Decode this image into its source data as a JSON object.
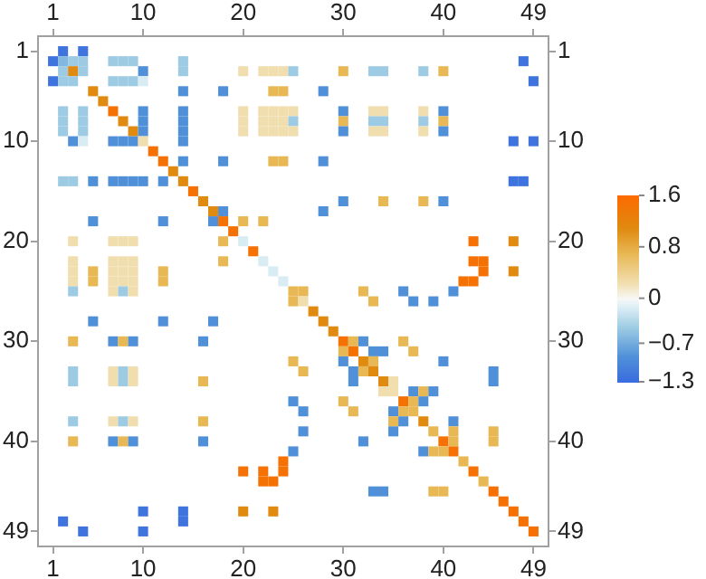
{
  "chart_data": {
    "type": "heatmap",
    "categories": [
      "1",
      null,
      null,
      null,
      null,
      null,
      null,
      null,
      null,
      "10",
      null,
      null,
      null,
      null,
      null,
      null,
      null,
      null,
      null,
      "20",
      null,
      null,
      null,
      null,
      null,
      null,
      null,
      null,
      null,
      "30",
      null,
      null,
      null,
      null,
      null,
      null,
      null,
      null,
      null,
      "40",
      null,
      null,
      null,
      null,
      null,
      null,
      null,
      null,
      "49"
    ],
    "y_categories": [
      "1",
      null,
      null,
      null,
      null,
      null,
      null,
      null,
      null,
      "10",
      null,
      null,
      null,
      null,
      null,
      null,
      null,
      null,
      null,
      "20",
      null,
      null,
      null,
      null,
      null,
      null,
      null,
      null,
      null,
      "30",
      null,
      null,
      null,
      null,
      null,
      null,
      null,
      null,
      null,
      "40",
      null,
      null,
      null,
      null,
      null,
      null,
      null,
      null,
      "49"
    ],
    "y2_categories": [
      "1",
      null,
      null,
      null,
      null,
      null,
      null,
      null,
      null,
      "10",
      null,
      null,
      null,
      null,
      null,
      null,
      null,
      null,
      null,
      "20",
      null,
      null,
      null,
      null,
      null,
      null,
      null,
      null,
      null,
      "30",
      null,
      null,
      null,
      null,
      null,
      null,
      null,
      null,
      null,
      "40",
      null,
      null,
      null,
      null,
      null,
      null,
      null,
      null,
      "49"
    ],
    "x2lim": [
      -0.5,
      50.5
    ],
    "x2ticks": [
      1,
      10,
      20,
      30,
      40,
      49
    ],
    "clim": [
      -1.3,
      1.6
    ],
    "cticks": [
      1.6,
      0.8,
      0,
      {
        "value": -0.7,
        "label": "−0.7"
      },
      {
        "value": -1.3,
        "label": "−1.3"
      }
    ],
    "cells": [
      [
        null,
        -1.2,
        null,
        -1.2,
        null,
        null,
        null,
        null,
        null,
        null,
        null,
        null,
        null,
        null,
        null,
        null,
        null,
        null,
        null,
        null,
        null,
        null,
        null,
        null,
        null,
        null,
        null,
        null,
        null,
        null,
        null,
        null,
        null,
        null,
        null,
        null,
        null,
        null,
        null,
        null,
        null,
        null,
        null,
        null,
        null,
        null,
        null,
        null,
        null
      ],
      [
        -1.2,
        -0.6,
        -0.45,
        -0.45,
        null,
        null,
        -0.45,
        -0.45,
        -0.45,
        null,
        null,
        null,
        null,
        -0.45,
        null,
        null,
        null,
        null,
        null,
        null,
        null,
        null,
        null,
        null,
        null,
        null,
        null,
        null,
        null,
        null,
        null,
        null,
        null,
        null,
        null,
        null,
        null,
        null,
        null,
        null,
        null,
        null,
        null,
        null,
        null,
        null,
        null,
        -1.2,
        null
      ],
      [
        null,
        -0.45,
        1.1,
        -0.45,
        null,
        null,
        null,
        null,
        null,
        -0.9,
        null,
        null,
        null,
        -0.45,
        null,
        null,
        null,
        null,
        null,
        0.25,
        null,
        0.25,
        0.25,
        0.25,
        -0.45,
        null,
        null,
        null,
        null,
        0.7,
        null,
        null,
        -0.45,
        -0.45,
        null,
        null,
        null,
        -0.45,
        null,
        0.7,
        null,
        null,
        null,
        null,
        null,
        null,
        null,
        null,
        null
      ],
      [
        -1.2,
        -0.45,
        -0.45,
        null,
        null,
        null,
        -0.45,
        -0.45,
        -0.45,
        -0.15,
        null,
        null,
        null,
        null,
        null,
        null,
        null,
        null,
        null,
        null,
        null,
        null,
        null,
        null,
        null,
        null,
        null,
        null,
        null,
        null,
        null,
        null,
        null,
        null,
        null,
        null,
        null,
        null,
        null,
        null,
        null,
        null,
        null,
        null,
        null,
        null,
        null,
        null,
        -1.2
      ],
      [
        null,
        null,
        null,
        null,
        1.1,
        null,
        null,
        null,
        null,
        null,
        null,
        null,
        null,
        -0.9,
        null,
        null,
        null,
        -0.9,
        null,
        null,
        null,
        null,
        0.7,
        0.7,
        null,
        null,
        null,
        -0.9,
        null,
        null,
        null,
        null,
        null,
        null,
        null,
        null,
        null,
        null,
        null,
        null,
        null,
        null,
        null,
        null,
        null,
        null,
        null,
        null,
        null
      ],
      [
        null,
        null,
        null,
        null,
        null,
        1.1,
        null,
        null,
        null,
        null,
        null,
        null,
        null,
        null,
        null,
        null,
        null,
        null,
        null,
        null,
        null,
        null,
        null,
        null,
        null,
        null,
        null,
        null,
        null,
        null,
        null,
        null,
        null,
        null,
        null,
        null,
        null,
        null,
        null,
        null,
        null,
        null,
        null,
        null,
        null,
        null,
        null,
        null,
        null
      ],
      [
        null,
        -0.45,
        null,
        -0.45,
        null,
        null,
        1.5,
        null,
        null,
        -0.9,
        null,
        null,
        null,
        -0.9,
        null,
        null,
        null,
        null,
        null,
        0.25,
        null,
        0.25,
        0.25,
        0.25,
        0.25,
        null,
        null,
        null,
        null,
        -0.9,
        null,
        null,
        0.25,
        0.25,
        null,
        null,
        null,
        0.25,
        null,
        -0.9,
        null,
        null,
        null,
        null,
        null,
        null,
        null,
        null,
        null
      ],
      [
        null,
        -0.45,
        null,
        -0.45,
        null,
        null,
        null,
        1.1,
        null,
        -0.9,
        null,
        null,
        null,
        -0.9,
        null,
        null,
        null,
        null,
        null,
        0.25,
        null,
        0.25,
        0.25,
        0.25,
        -0.45,
        null,
        null,
        null,
        null,
        0.7,
        null,
        null,
        -0.45,
        -0.45,
        null,
        null,
        null,
        -0.45,
        null,
        0.7,
        null,
        null,
        null,
        null,
        null,
        null,
        null,
        null,
        null
      ],
      [
        null,
        -0.45,
        null,
        -0.45,
        null,
        null,
        null,
        null,
        1.1,
        -0.9,
        null,
        null,
        null,
        -0.9,
        null,
        null,
        null,
        null,
        null,
        0.25,
        null,
        0.25,
        0.25,
        0.25,
        0.25,
        null,
        null,
        null,
        null,
        -0.9,
        null,
        null,
        0.25,
        0.25,
        null,
        null,
        null,
        0.25,
        null,
        -0.9,
        null,
        null,
        null,
        null,
        null,
        null,
        null,
        null,
        null
      ],
      [
        null,
        null,
        -0.9,
        -0.15,
        null,
        null,
        -0.9,
        -0.9,
        -0.9,
        0.25,
        null,
        null,
        null,
        -0.9,
        null,
        null,
        null,
        null,
        null,
        null,
        null,
        null,
        null,
        null,
        null,
        null,
        null,
        null,
        null,
        null,
        null,
        null,
        null,
        null,
        null,
        null,
        null,
        null,
        null,
        null,
        null,
        null,
        null,
        null,
        null,
        null,
        -1.2,
        null,
        -1.2
      ],
      [
        null,
        null,
        null,
        null,
        null,
        null,
        null,
        null,
        null,
        null,
        1.5,
        null,
        null,
        null,
        null,
        null,
        null,
        null,
        null,
        null,
        null,
        null,
        null,
        null,
        null,
        null,
        null,
        null,
        null,
        null,
        null,
        null,
        null,
        null,
        null,
        null,
        null,
        null,
        null,
        null,
        null,
        null,
        null,
        null,
        null,
        null,
        null,
        null,
        null
      ],
      [
        null,
        null,
        null,
        null,
        null,
        null,
        null,
        null,
        null,
        null,
        null,
        1.5,
        null,
        -0.9,
        null,
        null,
        null,
        -0.9,
        null,
        null,
        null,
        null,
        0.7,
        0.7,
        null,
        null,
        null,
        -0.9,
        null,
        null,
        null,
        null,
        null,
        null,
        null,
        null,
        null,
        null,
        null,
        null,
        null,
        null,
        null,
        null,
        null,
        null,
        null,
        null,
        null
      ],
      [
        null,
        null,
        null,
        null,
        null,
        null,
        null,
        null,
        null,
        null,
        null,
        null,
        1.1,
        null,
        null,
        null,
        null,
        null,
        null,
        null,
        null,
        null,
        null,
        null,
        null,
        null,
        null,
        null,
        null,
        null,
        null,
        null,
        null,
        null,
        null,
        null,
        null,
        null,
        null,
        null,
        null,
        null,
        null,
        null,
        null,
        null,
        null,
        null,
        null
      ],
      [
        null,
        -0.45,
        -0.45,
        null,
        -0.9,
        null,
        -0.9,
        -0.9,
        -0.9,
        -0.9,
        null,
        -0.9,
        null,
        1.1,
        null,
        null,
        null,
        null,
        null,
        null,
        null,
        null,
        null,
        null,
        null,
        null,
        null,
        null,
        null,
        null,
        null,
        null,
        null,
        null,
        null,
        null,
        null,
        null,
        null,
        null,
        null,
        null,
        null,
        null,
        null,
        null,
        -1.2,
        -1.2,
        null
      ],
      [
        null,
        null,
        null,
        null,
        null,
        null,
        null,
        null,
        null,
        null,
        null,
        null,
        null,
        null,
        1.5,
        null,
        null,
        null,
        null,
        null,
        null,
        null,
        null,
        null,
        null,
        null,
        null,
        null,
        null,
        null,
        null,
        null,
        null,
        null,
        null,
        null,
        null,
        null,
        null,
        null,
        null,
        null,
        null,
        null,
        null,
        null,
        null,
        null,
        null
      ],
      [
        null,
        null,
        null,
        null,
        null,
        null,
        null,
        null,
        null,
        null,
        null,
        null,
        null,
        null,
        null,
        1.1,
        null,
        null,
        null,
        null,
        null,
        null,
        null,
        null,
        null,
        null,
        null,
        null,
        null,
        -0.9,
        null,
        null,
        null,
        0.7,
        null,
        null,
        null,
        0.7,
        null,
        -0.9,
        null,
        null,
        null,
        null,
        null,
        null,
        null,
        null,
        null
      ],
      [
        null,
        null,
        null,
        null,
        null,
        null,
        null,
        null,
        null,
        null,
        null,
        null,
        null,
        null,
        null,
        null,
        1.1,
        -0.9,
        null,
        null,
        null,
        null,
        null,
        null,
        null,
        null,
        null,
        -0.9,
        null,
        null,
        null,
        null,
        null,
        null,
        null,
        null,
        null,
        null,
        null,
        null,
        null,
        null,
        null,
        null,
        null,
        null,
        null,
        null,
        null
      ],
      [
        null,
        null,
        null,
        null,
        -0.9,
        null,
        null,
        null,
        null,
        null,
        null,
        -0.9,
        null,
        null,
        null,
        null,
        -0.9,
        1.5,
        null,
        0.7,
        null,
        0.7,
        null,
        null,
        null,
        null,
        null,
        null,
        null,
        null,
        null,
        null,
        null,
        null,
        null,
        null,
        null,
        null,
        null,
        null,
        null,
        null,
        null,
        null,
        null,
        null,
        null,
        null,
        null
      ],
      [
        null,
        null,
        null,
        null,
        null,
        null,
        null,
        null,
        null,
        null,
        null,
        null,
        null,
        null,
        null,
        null,
        null,
        null,
        1.5,
        null,
        null,
        null,
        null,
        null,
        null,
        null,
        null,
        null,
        null,
        null,
        null,
        null,
        null,
        null,
        null,
        null,
        null,
        null,
        null,
        null,
        null,
        null,
        null,
        null,
        null,
        null,
        null,
        null,
        null
      ],
      [
        null,
        null,
        0.25,
        null,
        null,
        null,
        0.25,
        0.25,
        0.25,
        null,
        null,
        null,
        null,
        null,
        null,
        null,
        null,
        0.7,
        null,
        -0.15,
        null,
        null,
        null,
        null,
        null,
        null,
        null,
        null,
        null,
        null,
        null,
        null,
        null,
        null,
        null,
        null,
        null,
        null,
        null,
        null,
        null,
        null,
        1.5,
        null,
        null,
        null,
        1.1,
        null,
        null
      ],
      [
        null,
        null,
        null,
        null,
        null,
        null,
        null,
        null,
        null,
        null,
        null,
        null,
        null,
        null,
        null,
        null,
        null,
        null,
        null,
        null,
        1.5,
        null,
        null,
        null,
        null,
        null,
        null,
        null,
        null,
        null,
        null,
        null,
        null,
        null,
        null,
        null,
        null,
        null,
        null,
        null,
        null,
        null,
        null,
        null,
        null,
        null,
        null,
        null,
        null
      ],
      [
        null,
        null,
        0.25,
        null,
        null,
        null,
        0.25,
        0.25,
        0.25,
        null,
        null,
        null,
        null,
        null,
        null,
        null,
        null,
        0.7,
        null,
        null,
        null,
        -0.15,
        null,
        null,
        null,
        null,
        null,
        null,
        null,
        null,
        null,
        null,
        null,
        null,
        null,
        null,
        null,
        null,
        null,
        null,
        null,
        null,
        1.5,
        1.5,
        null,
        null,
        null,
        null,
        null
      ],
      [
        null,
        null,
        0.25,
        null,
        0.7,
        null,
        0.25,
        0.25,
        0.25,
        null,
        null,
        0.7,
        null,
        null,
        null,
        null,
        null,
        null,
        null,
        null,
        null,
        null,
        -0.15,
        null,
        null,
        null,
        null,
        null,
        null,
        null,
        null,
        null,
        null,
        null,
        null,
        null,
        null,
        null,
        null,
        null,
        null,
        null,
        null,
        1.5,
        null,
        null,
        1.1,
        null,
        null
      ],
      [
        null,
        null,
        0.25,
        null,
        0.7,
        null,
        0.25,
        0.25,
        0.25,
        null,
        null,
        0.7,
        null,
        null,
        null,
        null,
        null,
        null,
        null,
        null,
        null,
        null,
        null,
        -0.15,
        null,
        null,
        null,
        null,
        null,
        null,
        null,
        null,
        null,
        null,
        null,
        null,
        null,
        null,
        null,
        null,
        null,
        1.5,
        1.5,
        null,
        null,
        null,
        null,
        null,
        null
      ],
      [
        null,
        null,
        -0.45,
        null,
        null,
        null,
        0.25,
        -0.45,
        0.25,
        null,
        null,
        null,
        null,
        null,
        null,
        null,
        null,
        null,
        null,
        null,
        null,
        null,
        null,
        null,
        0.7,
        0.7,
        null,
        null,
        null,
        null,
        null,
        0.7,
        null,
        null,
        null,
        -0.9,
        null,
        null,
        null,
        null,
        -0.9,
        null,
        null,
        null,
        null,
        null,
        null,
        null,
        null
      ],
      [
        null,
        null,
        null,
        null,
        null,
        null,
        null,
        null,
        null,
        null,
        null,
        null,
        null,
        null,
        null,
        null,
        null,
        null,
        null,
        null,
        null,
        null,
        null,
        null,
        0.7,
        0.25,
        null,
        null,
        null,
        null,
        null,
        null,
        0.7,
        null,
        null,
        null,
        -0.9,
        null,
        -0.9,
        null,
        null,
        null,
        null,
        null,
        null,
        null,
        null,
        null,
        null
      ],
      [
        null,
        null,
        null,
        null,
        null,
        null,
        null,
        null,
        null,
        null,
        null,
        null,
        null,
        null,
        null,
        null,
        null,
        null,
        null,
        null,
        null,
        null,
        null,
        null,
        null,
        null,
        1.1,
        null,
        null,
        null,
        null,
        null,
        null,
        null,
        null,
        null,
        null,
        null,
        null,
        null,
        null,
        null,
        null,
        null,
        null,
        null,
        null,
        null,
        null
      ],
      [
        null,
        null,
        null,
        null,
        -0.9,
        null,
        null,
        null,
        null,
        null,
        null,
        -0.9,
        null,
        null,
        null,
        null,
        -0.9,
        null,
        null,
        null,
        null,
        null,
        null,
        null,
        null,
        null,
        null,
        1.1,
        null,
        null,
        null,
        null,
        null,
        null,
        null,
        null,
        null,
        null,
        null,
        null,
        null,
        null,
        null,
        null,
        null,
        null,
        null,
        null,
        null
      ],
      [
        null,
        null,
        null,
        null,
        null,
        null,
        null,
        null,
        null,
        null,
        null,
        null,
        null,
        null,
        null,
        null,
        null,
        null,
        null,
        null,
        null,
        null,
        null,
        null,
        null,
        null,
        null,
        null,
        1.1,
        null,
        null,
        null,
        null,
        null,
        null,
        null,
        null,
        null,
        null,
        null,
        null,
        null,
        null,
        null,
        null,
        null,
        null,
        null,
        null
      ],
      [
        null,
        null,
        0.7,
        null,
        null,
        null,
        -0.9,
        0.7,
        -0.9,
        null,
        null,
        null,
        null,
        null,
        null,
        -0.9,
        null,
        null,
        null,
        null,
        null,
        null,
        null,
        null,
        null,
        null,
        null,
        null,
        null,
        1.5,
        0.7,
        -0.9,
        null,
        null,
        null,
        0.7,
        null,
        null,
        null,
        null,
        null,
        null,
        null,
        null,
        null,
        null,
        null,
        null,
        null
      ],
      [
        null,
        null,
        null,
        null,
        null,
        null,
        null,
        null,
        null,
        null,
        null,
        null,
        null,
        null,
        null,
        null,
        null,
        null,
        null,
        null,
        null,
        null,
        null,
        null,
        null,
        null,
        null,
        null,
        null,
        0.7,
        1.5,
        null,
        -0.9,
        -0.9,
        null,
        null,
        0.7,
        null,
        null,
        null,
        null,
        null,
        null,
        null,
        null,
        null,
        null,
        null,
        null
      ],
      [
        null,
        null,
        null,
        null,
        null,
        null,
        null,
        null,
        null,
        null,
        null,
        null,
        null,
        null,
        null,
        null,
        null,
        null,
        null,
        null,
        null,
        null,
        null,
        null,
        0.7,
        null,
        null,
        null,
        null,
        -0.9,
        null,
        1.1,
        0.7,
        null,
        null,
        null,
        null,
        null,
        null,
        -0.9,
        null,
        null,
        null,
        null,
        null,
        null,
        null,
        null,
        null
      ],
      [
        null,
        null,
        -0.45,
        null,
        null,
        null,
        0.25,
        -0.45,
        0.25,
        null,
        null,
        null,
        null,
        null,
        null,
        null,
        null,
        null,
        null,
        null,
        null,
        null,
        null,
        null,
        null,
        0.7,
        null,
        null,
        null,
        null,
        -0.9,
        0.7,
        1.1,
        null,
        null,
        null,
        null,
        null,
        null,
        null,
        null,
        null,
        null,
        null,
        -0.9,
        null,
        null,
        null,
        null
      ],
      [
        null,
        null,
        -0.45,
        null,
        null,
        null,
        0.25,
        -0.45,
        0.25,
        null,
        null,
        null,
        null,
        null,
        null,
        0.7,
        null,
        null,
        null,
        null,
        null,
        null,
        null,
        null,
        null,
        null,
        null,
        null,
        null,
        null,
        -0.9,
        null,
        null,
        1.1,
        0.25,
        null,
        null,
        null,
        null,
        null,
        null,
        null,
        null,
        null,
        -0.9,
        null,
        null,
        null,
        null
      ],
      [
        null,
        null,
        null,
        null,
        null,
        null,
        null,
        null,
        null,
        null,
        null,
        null,
        null,
        null,
        null,
        null,
        null,
        null,
        null,
        null,
        null,
        null,
        null,
        null,
        null,
        null,
        null,
        null,
        null,
        null,
        null,
        null,
        null,
        0.25,
        0.25,
        null,
        -0.9,
        0.7,
        -0.9,
        null,
        null,
        null,
        null,
        null,
        null,
        null,
        null,
        null,
        null
      ],
      [
        null,
        null,
        null,
        null,
        null,
        null,
        null,
        null,
        null,
        null,
        null,
        null,
        null,
        null,
        null,
        null,
        null,
        null,
        null,
        null,
        null,
        null,
        null,
        null,
        -0.9,
        null,
        null,
        null,
        null,
        0.7,
        null,
        null,
        null,
        null,
        null,
        1.5,
        0.7,
        -0.9,
        null,
        null,
        null,
        null,
        null,
        null,
        null,
        null,
        null,
        null,
        null
      ],
      [
        null,
        null,
        null,
        null,
        null,
        null,
        null,
        null,
        null,
        null,
        null,
        null,
        null,
        null,
        null,
        null,
        null,
        null,
        null,
        null,
        null,
        null,
        null,
        null,
        null,
        -0.9,
        null,
        null,
        null,
        null,
        0.7,
        null,
        null,
        null,
        -0.9,
        0.7,
        0.7,
        null,
        null,
        null,
        null,
        null,
        null,
        null,
        null,
        null,
        null,
        null,
        null
      ],
      [
        null,
        null,
        -0.45,
        null,
        null,
        null,
        0.25,
        -0.45,
        0.25,
        null,
        null,
        null,
        null,
        null,
        null,
        0.7,
        null,
        null,
        null,
        null,
        null,
        null,
        null,
        null,
        null,
        null,
        null,
        null,
        null,
        null,
        null,
        null,
        null,
        null,
        0.7,
        -0.9,
        null,
        1.1,
        null,
        null,
        -0.9,
        null,
        null,
        null,
        null,
        null,
        null,
        null,
        null
      ],
      [
        null,
        null,
        null,
        null,
        null,
        null,
        null,
        null,
        null,
        null,
        null,
        null,
        null,
        null,
        null,
        null,
        null,
        null,
        null,
        null,
        null,
        null,
        null,
        null,
        null,
        -0.9,
        null,
        null,
        null,
        null,
        null,
        null,
        null,
        null,
        -0.9,
        null,
        null,
        null,
        0.7,
        null,
        0.7,
        null,
        null,
        null,
        0.7,
        null,
        null,
        null,
        null
      ],
      [
        null,
        null,
        0.7,
        null,
        null,
        null,
        -0.9,
        0.7,
        -0.9,
        null,
        null,
        null,
        null,
        null,
        null,
        -0.9,
        null,
        null,
        null,
        null,
        null,
        null,
        null,
        null,
        null,
        null,
        null,
        null,
        null,
        null,
        null,
        -0.9,
        null,
        null,
        null,
        null,
        null,
        null,
        null,
        1.5,
        0.7,
        null,
        null,
        null,
        0.7,
        null,
        null,
        null,
        null
      ],
      [
        null,
        null,
        null,
        null,
        null,
        null,
        null,
        null,
        null,
        null,
        null,
        null,
        null,
        null,
        null,
        null,
        null,
        null,
        null,
        null,
        null,
        null,
        null,
        null,
        -0.9,
        null,
        null,
        null,
        null,
        null,
        null,
        null,
        null,
        null,
        null,
        null,
        null,
        -0.9,
        0.7,
        0.7,
        1.5,
        null,
        null,
        null,
        null,
        null,
        null,
        null,
        null
      ],
      [
        null,
        null,
        null,
        null,
        null,
        null,
        null,
        null,
        null,
        null,
        null,
        null,
        null,
        null,
        null,
        null,
        null,
        null,
        null,
        null,
        null,
        null,
        null,
        1.5,
        null,
        null,
        null,
        null,
        null,
        null,
        null,
        null,
        null,
        null,
        null,
        null,
        null,
        null,
        null,
        null,
        null,
        0.7,
        null,
        null,
        null,
        null,
        null,
        null,
        null
      ],
      [
        null,
        null,
        null,
        null,
        null,
        null,
        null,
        null,
        null,
        null,
        null,
        null,
        null,
        null,
        null,
        null,
        null,
        null,
        null,
        1.5,
        null,
        1.5,
        null,
        1.5,
        null,
        null,
        null,
        null,
        null,
        null,
        null,
        null,
        null,
        null,
        null,
        null,
        null,
        null,
        null,
        null,
        null,
        null,
        1.5,
        null,
        null,
        null,
        null,
        null,
        null
      ],
      [
        null,
        null,
        null,
        null,
        null,
        null,
        null,
        null,
        null,
        null,
        null,
        null,
        null,
        null,
        null,
        null,
        null,
        null,
        null,
        null,
        null,
        1.5,
        1.5,
        null,
        null,
        null,
        null,
        null,
        null,
        null,
        null,
        null,
        null,
        null,
        null,
        null,
        null,
        null,
        null,
        null,
        null,
        null,
        null,
        0.7,
        null,
        null,
        null,
        null,
        null
      ],
      [
        null,
        null,
        null,
        null,
        null,
        null,
        null,
        null,
        null,
        null,
        null,
        null,
        null,
        null,
        null,
        null,
        null,
        null,
        null,
        null,
        null,
        null,
        null,
        null,
        null,
        null,
        null,
        null,
        null,
        null,
        null,
        null,
        -0.9,
        -0.9,
        null,
        null,
        null,
        null,
        0.7,
        0.7,
        null,
        null,
        null,
        null,
        1.5,
        null,
        null,
        null,
        null
      ],
      [
        null,
        null,
        null,
        null,
        null,
        null,
        null,
        null,
        null,
        null,
        null,
        null,
        null,
        null,
        null,
        null,
        null,
        null,
        null,
        null,
        null,
        null,
        null,
        null,
        null,
        null,
        null,
        null,
        null,
        null,
        null,
        null,
        null,
        null,
        null,
        null,
        null,
        null,
        null,
        null,
        null,
        null,
        null,
        null,
        null,
        1.5,
        null,
        null,
        null
      ],
      [
        null,
        null,
        null,
        null,
        null,
        null,
        null,
        null,
        null,
        -1.2,
        null,
        null,
        null,
        -1.2,
        null,
        null,
        null,
        null,
        null,
        1.1,
        null,
        null,
        1.1,
        null,
        null,
        null,
        null,
        null,
        null,
        null,
        null,
        null,
        null,
        null,
        null,
        null,
        null,
        null,
        null,
        null,
        null,
        null,
        null,
        null,
        null,
        null,
        1.5,
        null,
        null
      ],
      [
        null,
        -1.2,
        null,
        null,
        null,
        null,
        null,
        null,
        null,
        null,
        null,
        null,
        null,
        -1.2,
        null,
        null,
        null,
        null,
        null,
        null,
        null,
        null,
        null,
        null,
        null,
        null,
        null,
        null,
        null,
        null,
        null,
        null,
        null,
        null,
        null,
        null,
        null,
        null,
        null,
        null,
        null,
        null,
        null,
        null,
        null,
        null,
        null,
        1.5,
        null
      ],
      [
        null,
        null,
        null,
        -1.2,
        null,
        null,
        null,
        null,
        null,
        -1.2,
        null,
        null,
        null,
        null,
        null,
        null,
        null,
        null,
        null,
        null,
        null,
        null,
        null,
        null,
        null,
        null,
        null,
        null,
        null,
        null,
        null,
        null,
        null,
        null,
        null,
        null,
        null,
        null,
        null,
        null,
        null,
        null,
        null,
        null,
        null,
        null,
        null,
        null,
        1.5
      ]
    ]
  }
}
